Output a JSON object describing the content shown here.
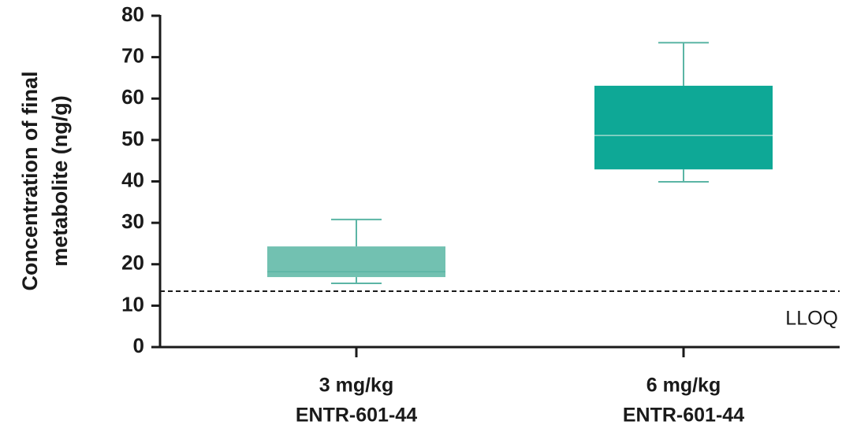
{
  "chart_data": {
    "type": "box",
    "y_label": [
      "Concentration of final",
      "metabolite (ng/g)"
    ],
    "categories": [
      [
        "3 mg/kg",
        "ENTR-601-44"
      ],
      [
        "6 mg/kg",
        "ENTR-601-44"
      ]
    ],
    "boxes": [
      {
        "whisker_low": 15.4,
        "q1": 16.9,
        "median": 18.2,
        "q3": 24.3,
        "whisker_high": 30.8,
        "color": "#72c1b1"
      },
      {
        "whisker_low": 39.9,
        "q1": 42.9,
        "median": 51.1,
        "q3": 63.1,
        "whisker_high": 73.5,
        "color": "#0ea896"
      }
    ],
    "whisker_color": "#5bb5a5",
    "median_color": "#9fd8cc",
    "ylim": [
      0,
      80
    ],
    "yticks": [
      0,
      10,
      20,
      30,
      40,
      50,
      60,
      70,
      80
    ],
    "reference_line": {
      "value": 13.5,
      "label": "LLOQ"
    }
  }
}
